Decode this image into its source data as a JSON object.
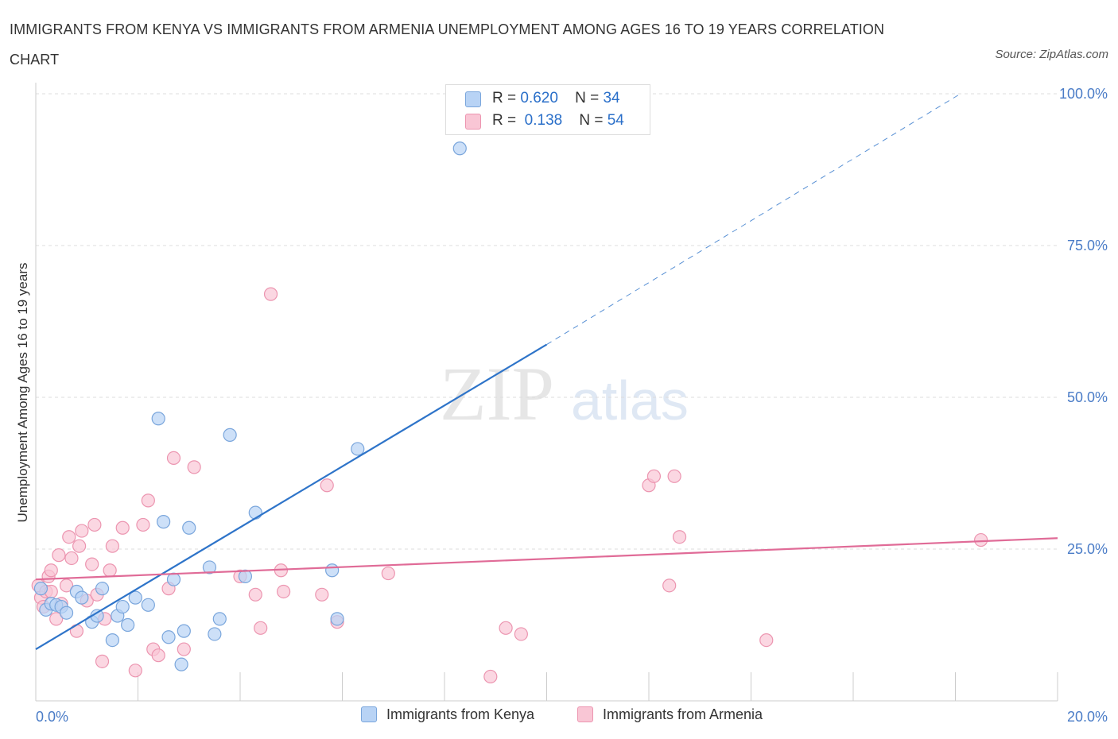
{
  "title": "IMMIGRANTS FROM KENYA VS IMMIGRANTS FROM ARMENIA UNEMPLOYMENT AMONG AGES 16 TO 19 YEARS CORRELATION CHART",
  "source": "Source: ZipAtlas.com",
  "watermark": {
    "zip": "ZIP",
    "atlas": "atlas"
  },
  "legend_top": {
    "rows": [
      {
        "r_label": "R =",
        "r_value": "0.620",
        "n_label": "N =",
        "n_value": "34"
      },
      {
        "r_label": "R =",
        "r_value": "0.138",
        "n_label": "N =",
        "n_value": "54"
      }
    ]
  },
  "legend_bottom": {
    "kenya": "Immigrants from Kenya",
    "armenia": "Immigrants from Armenia"
  },
  "colors": {
    "kenya_fill": "#b8d3f5",
    "kenya_stroke": "#7aa6dc",
    "kenya_line": "#2e74c9",
    "armenia_fill": "#f9c6d5",
    "armenia_stroke": "#ec95b0",
    "armenia_line": "#e06b97",
    "grid": "#dcdcdc",
    "tick_text": "#4a7cc7"
  },
  "chart_data": {
    "type": "scatter",
    "title": "IMMIGRANTS FROM KENYA VS IMMIGRANTS FROM ARMENIA UNEMPLOYMENT AMONG AGES 16 TO 19 YEARS CORRELATION CHART",
    "xlabel": "",
    "ylabel": "Unemployment Among Ages 16 to 19 years",
    "xlim": [
      0,
      20
    ],
    "ylim": [
      0,
      100
    ],
    "x_tick_labels": [
      {
        "value": 0,
        "label": "0.0%"
      },
      {
        "value": 20,
        "label": "20.0%"
      }
    ],
    "y_tick_labels": [
      {
        "value": 25,
        "label": "25.0%"
      },
      {
        "value": 50,
        "label": "50.0%"
      },
      {
        "value": 75,
        "label": "75.0%"
      },
      {
        "value": 100,
        "label": "100.0%"
      }
    ],
    "grid": true,
    "legend_position": "top-center",
    "series": [
      {
        "name": "Immigrants from Kenya",
        "R": 0.62,
        "N": 34,
        "trend": {
          "x0": 0,
          "y0": 8.5,
          "x1": 10,
          "y1": 58.7,
          "dashed_to_x": 18.1,
          "dashed_to_y": 100
        },
        "points": [
          [
            0.1,
            18.5
          ],
          [
            0.2,
            15.0
          ],
          [
            0.3,
            16.0
          ],
          [
            0.4,
            15.8
          ],
          [
            0.5,
            15.5
          ],
          [
            0.6,
            14.5
          ],
          [
            0.8,
            18.0
          ],
          [
            0.9,
            17.0
          ],
          [
            1.1,
            13.0
          ],
          [
            1.2,
            14.0
          ],
          [
            1.3,
            18.5
          ],
          [
            1.5,
            10.0
          ],
          [
            1.6,
            14.0
          ],
          [
            1.7,
            15.5
          ],
          [
            1.8,
            12.5
          ],
          [
            1.95,
            17.0
          ],
          [
            2.2,
            15.8
          ],
          [
            2.4,
            46.5
          ],
          [
            2.5,
            29.5
          ],
          [
            2.6,
            10.5
          ],
          [
            2.7,
            20.0
          ],
          [
            2.85,
            6.0
          ],
          [
            2.9,
            11.5
          ],
          [
            3.0,
            28.5
          ],
          [
            3.4,
            22.0
          ],
          [
            3.5,
            11.0
          ],
          [
            3.6,
            13.5
          ],
          [
            3.8,
            43.8
          ],
          [
            4.1,
            20.5
          ],
          [
            4.3,
            31.0
          ],
          [
            5.8,
            21.5
          ],
          [
            5.9,
            13.5
          ],
          [
            6.3,
            41.5
          ],
          [
            8.3,
            91.0
          ]
        ]
      },
      {
        "name": "Immigrants from Armenia",
        "R": 0.138,
        "N": 54,
        "trend": {
          "x0": 0,
          "y0": 20.0,
          "x1": 20,
          "y1": 26.8
        },
        "points": [
          [
            0.05,
            19.0
          ],
          [
            0.1,
            17.0
          ],
          [
            0.15,
            15.5
          ],
          [
            0.2,
            18.0
          ],
          [
            0.25,
            20.5
          ],
          [
            0.3,
            21.5
          ],
          [
            0.4,
            13.5
          ],
          [
            0.45,
            24.0
          ],
          [
            0.5,
            16.0
          ],
          [
            0.6,
            19.0
          ],
          [
            0.65,
            27.0
          ],
          [
            0.7,
            23.5
          ],
          [
            0.8,
            11.5
          ],
          [
            0.85,
            25.5
          ],
          [
            0.9,
            28.0
          ],
          [
            1.0,
            16.5
          ],
          [
            1.1,
            22.5
          ],
          [
            1.15,
            29.0
          ],
          [
            1.2,
            17.5
          ],
          [
            1.3,
            6.5
          ],
          [
            1.35,
            13.5
          ],
          [
            1.45,
            21.5
          ],
          [
            1.5,
            25.5
          ],
          [
            1.7,
            28.5
          ],
          [
            1.95,
            5.0
          ],
          [
            2.1,
            29.0
          ],
          [
            2.2,
            33.0
          ],
          [
            2.3,
            8.5
          ],
          [
            2.4,
            7.5
          ],
          [
            2.6,
            18.5
          ],
          [
            2.7,
            40.0
          ],
          [
            2.9,
            8.5
          ],
          [
            3.1,
            38.5
          ],
          [
            4.0,
            20.5
          ],
          [
            4.3,
            17.5
          ],
          [
            4.4,
            12.0
          ],
          [
            4.6,
            67.0
          ],
          [
            4.8,
            21.5
          ],
          [
            4.85,
            18.0
          ],
          [
            5.6,
            17.5
          ],
          [
            5.7,
            35.5
          ],
          [
            5.9,
            13.0
          ],
          [
            6.9,
            21.0
          ],
          [
            8.9,
            4.0
          ],
          [
            9.2,
            12.0
          ],
          [
            9.5,
            11.0
          ],
          [
            12.0,
            35.5
          ],
          [
            12.1,
            37.0
          ],
          [
            12.5,
            37.0
          ],
          [
            12.4,
            19.0
          ],
          [
            12.6,
            27.0
          ],
          [
            14.3,
            10.0
          ],
          [
            18.5,
            26.5
          ],
          [
            0.3,
            18.0
          ]
        ]
      }
    ]
  }
}
